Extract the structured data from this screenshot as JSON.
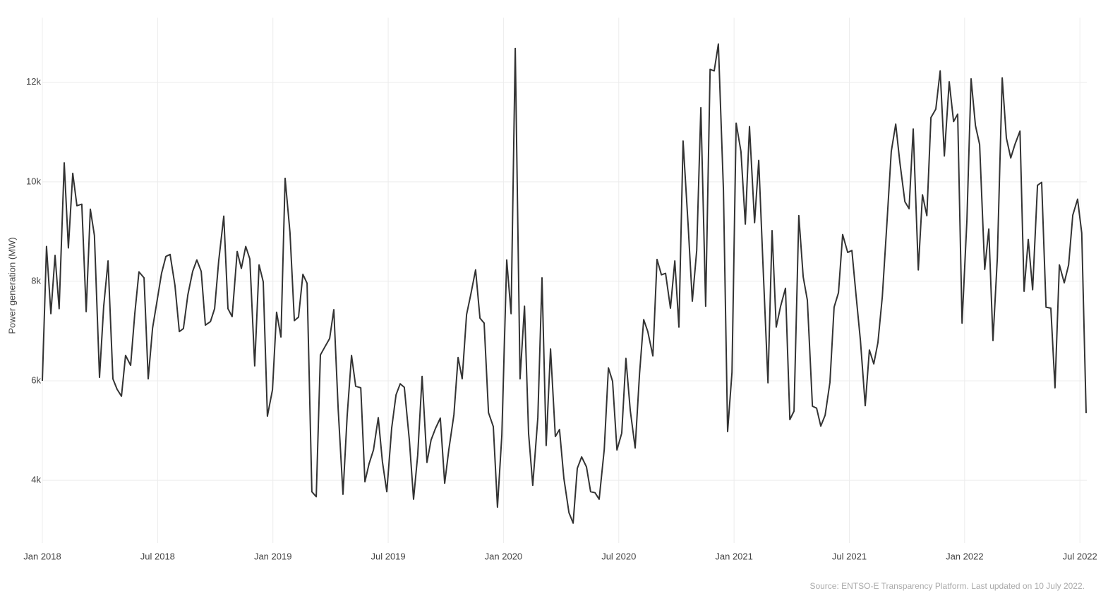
{
  "chart_data": {
    "type": "line",
    "y_label": "Power generation (MW)",
    "source": "Source: ENTSO-E Transparency Platform. Last updated on 10 July 2022.",
    "xlim": [
      2018,
      2022.53
    ],
    "ylim": [
      2740,
      13300
    ],
    "grid": true,
    "xticks": [
      {
        "value": 2018,
        "label": "Jan 2018"
      },
      {
        "value": 2018.5,
        "label": "Jul 2018"
      },
      {
        "value": 2019,
        "label": "Jan 2019"
      },
      {
        "value": 2019.5,
        "label": "Jul 2019"
      },
      {
        "value": 2020,
        "label": "Jan 2020"
      },
      {
        "value": 2020.5,
        "label": "Jul 2020"
      },
      {
        "value": 2021,
        "label": "Jan 2021"
      },
      {
        "value": 2021.5,
        "label": "Jul 2021"
      },
      {
        "value": 2022,
        "label": "Jan 2022"
      },
      {
        "value": 2022.5,
        "label": "Jul 2022"
      }
    ],
    "yticks": [
      {
        "value": 4000,
        "label": "4k"
      },
      {
        "value": 6000,
        "label": "6k"
      },
      {
        "value": 8000,
        "label": "8k"
      },
      {
        "value": 10000,
        "label": "10k"
      },
      {
        "value": 12000,
        "label": "12k"
      }
    ],
    "series": [
      {
        "color": "#333333",
        "x": [
          2018.0,
          2018.018,
          2018.037,
          2018.055,
          2018.073,
          2018.095,
          2018.113,
          2018.132,
          2018.15,
          2018.171,
          2018.19,
          2018.208,
          2018.226,
          2018.248,
          2018.266,
          2018.285,
          2018.306,
          2018.324,
          2018.343,
          2018.361,
          2018.383,
          2018.401,
          2018.419,
          2018.441,
          2018.459,
          2018.478,
          2018.496,
          2018.517,
          2018.536,
          2018.554,
          2018.575,
          2018.594,
          2018.612,
          2018.631,
          2018.652,
          2018.67,
          2018.689,
          2018.707,
          2018.729,
          2018.747,
          2018.765,
          2018.787,
          2018.805,
          2018.823,
          2018.845,
          2018.863,
          2018.882,
          2018.9,
          2018.921,
          2018.94,
          2018.958,
          2018.976,
          2018.998,
          2019.016,
          2019.035,
          2019.053,
          2019.074,
          2019.093,
          2019.111,
          2019.13,
          2019.148,
          2019.169,
          2019.188,
          2019.206,
          2019.224,
          2019.246,
          2019.264,
          2019.283,
          2019.304,
          2019.322,
          2019.341,
          2019.359,
          2019.381,
          2019.399,
          2019.417,
          2019.436,
          2019.457,
          2019.475,
          2019.494,
          2019.515,
          2019.534,
          2019.552,
          2019.57,
          2019.592,
          2019.61,
          2019.628,
          2019.647,
          2019.668,
          2019.686,
          2019.705,
          2019.726,
          2019.745,
          2019.763,
          2019.785,
          2019.803,
          2019.821,
          2019.84,
          2019.858,
          2019.879,
          2019.898,
          2019.916,
          2019.935,
          2019.956,
          2019.974,
          2019.993,
          2020.014,
          2020.033,
          2020.051,
          2020.072,
          2020.091,
          2020.109,
          2020.127,
          2020.149,
          2020.167,
          2020.185,
          2020.204,
          2020.225,
          2020.243,
          2020.262,
          2020.284,
          2020.302,
          2020.32,
          2020.339,
          2020.36,
          2020.378,
          2020.397,
          2020.415,
          2020.437,
          2020.455,
          2020.473,
          2020.492,
          2020.513,
          2020.531,
          2020.55,
          2020.571,
          2020.59,
          2020.608,
          2020.626,
          2020.648,
          2020.666,
          2020.685,
          2020.703,
          2020.724,
          2020.743,
          2020.761,
          2020.779,
          2020.801,
          2020.819,
          2020.838,
          2020.856,
          2020.877,
          2020.896,
          2020.914,
          2020.932,
          2020.954,
          2020.972,
          2020.991,
          2021.009,
          2021.03,
          2021.049,
          2021.067,
          2021.089,
          2021.107,
          2021.125,
          2021.147,
          2021.165,
          2021.183,
          2021.202,
          2021.223,
          2021.242,
          2021.26,
          2021.281,
          2021.3,
          2021.318,
          2021.34,
          2021.358,
          2021.376,
          2021.395,
          2021.416,
          2021.434,
          2021.453,
          2021.471,
          2021.493,
          2021.511,
          2021.529,
          2021.548,
          2021.569,
          2021.587,
          2021.606,
          2021.624,
          2021.643,
          2021.664,
          2021.682,
          2021.701,
          2021.719,
          2021.741,
          2021.759,
          2021.777,
          2021.799,
          2021.817,
          2021.836,
          2021.854,
          2021.875,
          2021.894,
          2021.912,
          2021.933,
          2021.952,
          2021.97,
          2021.989,
          2022.01,
          2022.028,
          2022.047,
          2022.065,
          2022.087,
          2022.105,
          2022.123,
          2022.142,
          2022.163,
          2022.181,
          2022.2,
          2022.218,
          2022.24,
          2022.258,
          2022.276,
          2022.295,
          2022.316,
          2022.334,
          2022.353,
          2022.374,
          2022.392,
          2022.411,
          2022.432,
          2022.451,
          2022.469,
          2022.49,
          2022.508,
          2022.527
        ],
        "values": [
          6000,
          8700,
          7350,
          8520,
          7450,
          10380,
          8670,
          10170,
          9520,
          9550,
          7390,
          9450,
          8920,
          6070,
          7490,
          8410,
          6040,
          5830,
          5690,
          6510,
          6310,
          7350,
          8190,
          8070,
          6040,
          7060,
          7560,
          8160,
          8500,
          8540,
          7920,
          6990,
          7050,
          7730,
          8200,
          8430,
          8200,
          7120,
          7190,
          7450,
          8410,
          9310,
          7450,
          7290,
          8600,
          8260,
          8700,
          8450,
          6300,
          8330,
          7990,
          5290,
          5820,
          7380,
          6880,
          10070,
          8980,
          7210,
          7280,
          8140,
          7960,
          3770,
          3670,
          6520,
          6670,
          6850,
          7430,
          5430,
          3720,
          5290,
          6510,
          5890,
          5860,
          3970,
          4330,
          4610,
          5260,
          4370,
          3770,
          5050,
          5720,
          5940,
          5870,
          4800,
          3620,
          4510,
          6090,
          4360,
          4810,
          5040,
          5250,
          3940,
          4620,
          5320,
          6470,
          6040,
          7330,
          7730,
          8230,
          7260,
          7160,
          5360,
          5080,
          3460,
          4910,
          8430,
          7350,
          12680,
          6040,
          7500,
          4940,
          3900,
          5260,
          8070,
          4700,
          6640,
          4880,
          5020,
          4040,
          3350,
          3140,
          4240,
          4470,
          4270,
          3770,
          3750,
          3620,
          4620,
          6260,
          5990,
          4610,
          4950,
          6450,
          5400,
          4650,
          6140,
          7230,
          6990,
          6500,
          8440,
          8130,
          8160,
          7460,
          8410,
          7080,
          10820,
          9120,
          7600,
          8620,
          11490,
          7500,
          12260,
          12230,
          12770,
          9830,
          4980,
          6170,
          11180,
          10610,
          9150,
          11110,
          9180,
          10430,
          8380,
          5960,
          9020,
          7080,
          7500,
          7860,
          5220,
          5390,
          9320,
          8090,
          7620,
          5490,
          5450,
          5090,
          5310,
          5970,
          7480,
          7770,
          8940,
          8580,
          8620,
          7720,
          6810,
          5500,
          6620,
          6340,
          6770,
          7690,
          9250,
          10610,
          11160,
          10400,
          9600,
          9460,
          11060,
          8230,
          9740,
          9320,
          11290,
          11460,
          12230,
          10520,
          12010,
          11210,
          11360,
          7160,
          9230,
          12070,
          11130,
          10750,
          8240,
          9050,
          6810,
          8470,
          12090,
          10880,
          10480,
          10750,
          11020,
          7800,
          8840,
          7830,
          9930,
          9990,
          7480,
          7460,
          5860,
          8330,
          7970,
          8330,
          9330,
          9650,
          8970,
          5350
        ]
      }
    ]
  }
}
